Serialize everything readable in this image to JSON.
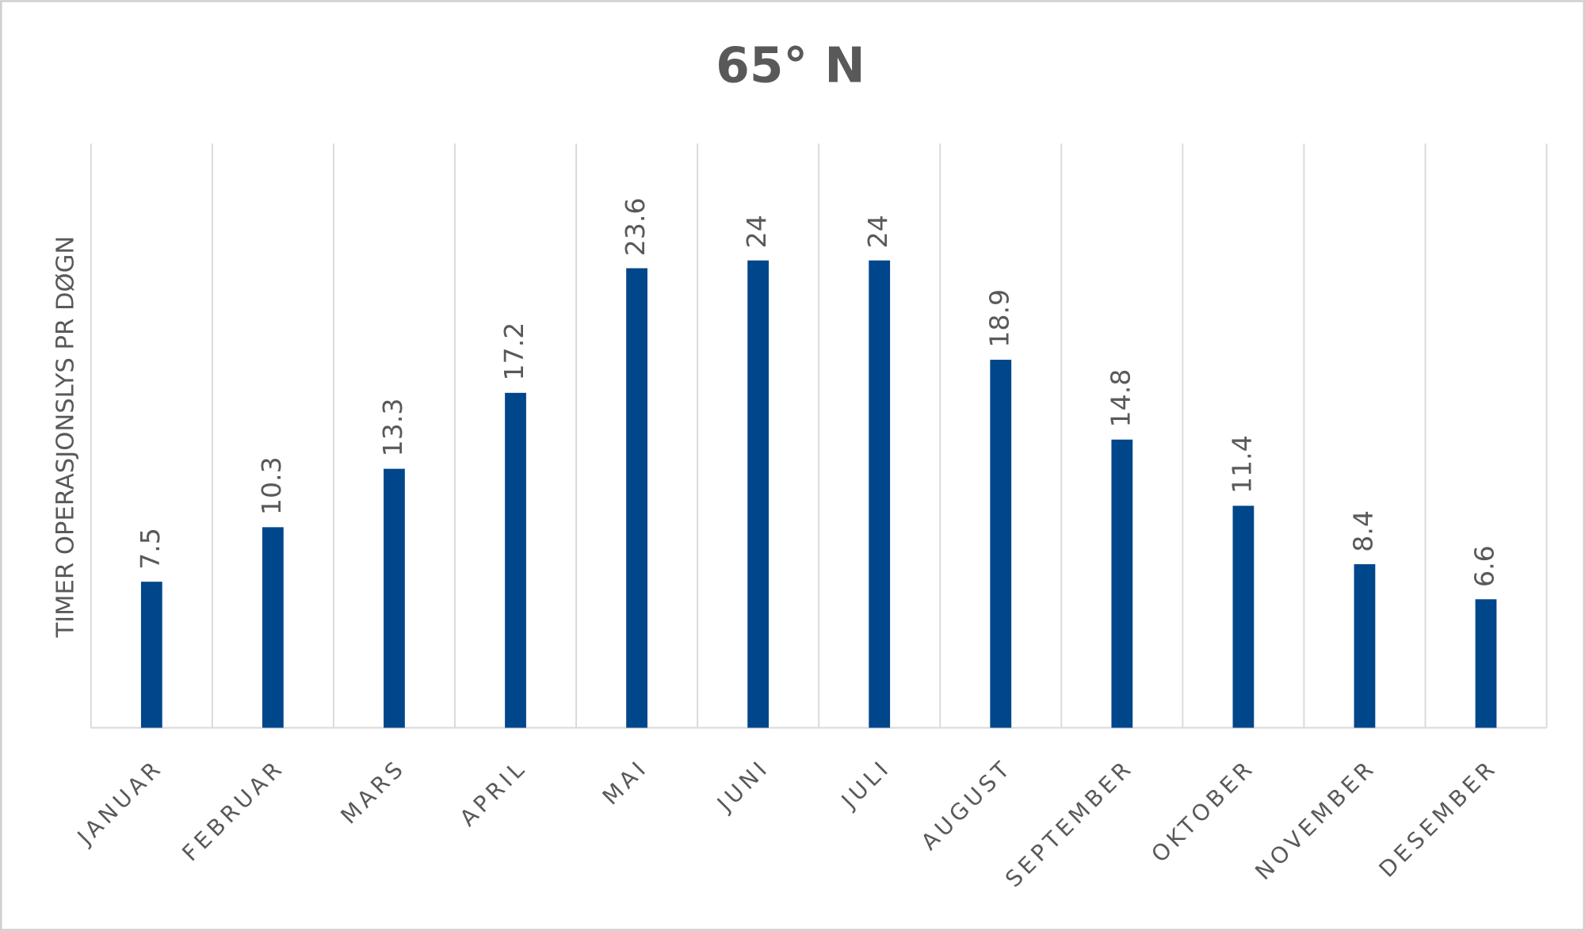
{
  "chart_data": {
    "type": "bar",
    "title": "65° N",
    "y_label": "TIMER OPERASJONSLYS PR DØGN",
    "categories": [
      "JANUAR",
      "FEBRUAR",
      "MARS",
      "APRIL",
      "MAI",
      "JUNI",
      "JULI",
      "AUGUST",
      "SEPTEMBER",
      "OKTOBER",
      "NOVEMBER",
      "DESEMBER"
    ],
    "values": [
      7.5,
      10.3,
      13.3,
      17.2,
      23.6,
      24,
      24,
      18.9,
      14.8,
      11.4,
      8.4,
      6.6
    ],
    "color": "#00468b",
    "ylim": [
      0,
      30
    ]
  }
}
